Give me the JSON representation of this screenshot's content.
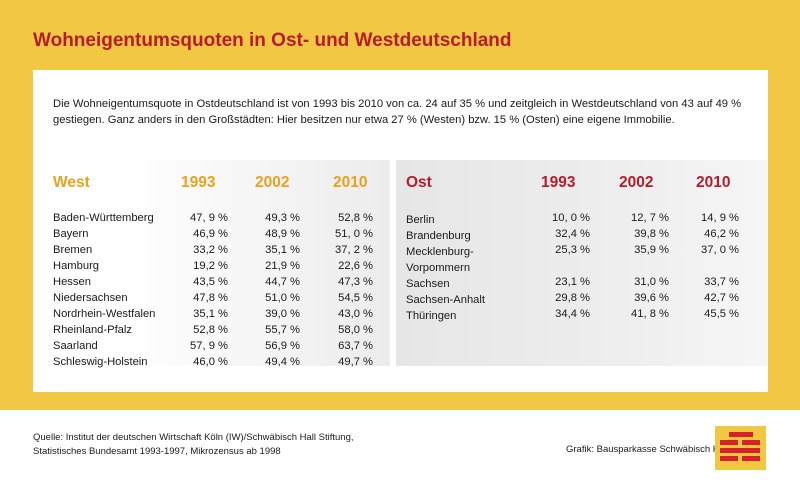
{
  "title": "Wohneigentumsquoten in Ost- und Westdeutschland",
  "intro": "Die Wohneigentumsquote in Ostdeutschland ist von 1993 bis 2010 von ca. 24 auf 35 % und zeitgleich in Westdeutschland von 43 auf 49 % gestiegen. Ganz anders in den Großstädten: Hier besitzen nur etwa 27 % (Westen) bzw. 15 % (Osten) eine eigene Immobilie.",
  "colors": {
    "yellow": "#f2c744",
    "red": "#b81b2a",
    "orange": "#e8a21c"
  },
  "chart_data": [
    {
      "type": "table",
      "columns": [
        "West",
        "1993",
        "2002",
        "2010"
      ],
      "rows": [
        [
          "Baden-Württemberg",
          "47, 9 %",
          "49,3 %",
          "52,8 %"
        ],
        [
          "Bayern",
          "46,9 %",
          "48,9 %",
          "51, 0 %"
        ],
        [
          "Bremen",
          "33,2 %",
          "35,1 %",
          "37, 2 %"
        ],
        [
          "Hamburg",
          "19,2 %",
          "21,9 %",
          "22,6 %"
        ],
        [
          "Hessen",
          "43,5 %",
          "44,7 %",
          "47,3 %"
        ],
        [
          "Niedersachsen",
          "47,8 %",
          "51,0 %",
          "54,5 %"
        ],
        [
          "Nordrhein-Westfalen",
          "35,1 %",
          "39,0 %",
          "43,0 %"
        ],
        [
          "Rheinland-Pfalz",
          "52,8 %",
          "55,7 %",
          "58,0 %"
        ],
        [
          "Saarland",
          "57, 9 %",
          "56,9 %",
          "63,7 %"
        ],
        [
          "Schleswig-Holstein",
          "46,0 %",
          "49,4 %",
          "49,7 %"
        ]
      ]
    },
    {
      "type": "table",
      "columns": [
        "Ost",
        "1993",
        "2002",
        "2010"
      ],
      "rows": [
        [
          "Berlin",
          "10, 0 %",
          "12, 7 %",
          "14, 9 %"
        ],
        [
          "Brandenburg",
          "32,4 %",
          "39,8 %",
          "46,2 %"
        ],
        [
          "Mecklenburg-Vorpommern",
          "25,3 %",
          "35,9 %",
          "37, 0 %"
        ],
        [
          "Sachsen",
          "23,1 %",
          "31,0 %",
          "33,7 %"
        ],
        [
          "Sachsen-Anhalt",
          "29,8 %",
          "39,6 %",
          "42,7 %"
        ],
        [
          "Thüringen",
          "34,4 %",
          "41, 8 %",
          "45,5 %"
        ]
      ]
    }
  ],
  "source": {
    "line1": "Quelle: Institut der deutschen Wirtschaft Köln (IW)/Schwäbisch Hall Stiftung,",
    "line2": "Statistisches Bundesamt 1993-1997, Mikrozensus ab 1998"
  },
  "credit": "Grafik: Bausparkasse Schwäbisch Hall",
  "logo": {
    "icon": "schwaebisch-hall-logo-icon"
  }
}
